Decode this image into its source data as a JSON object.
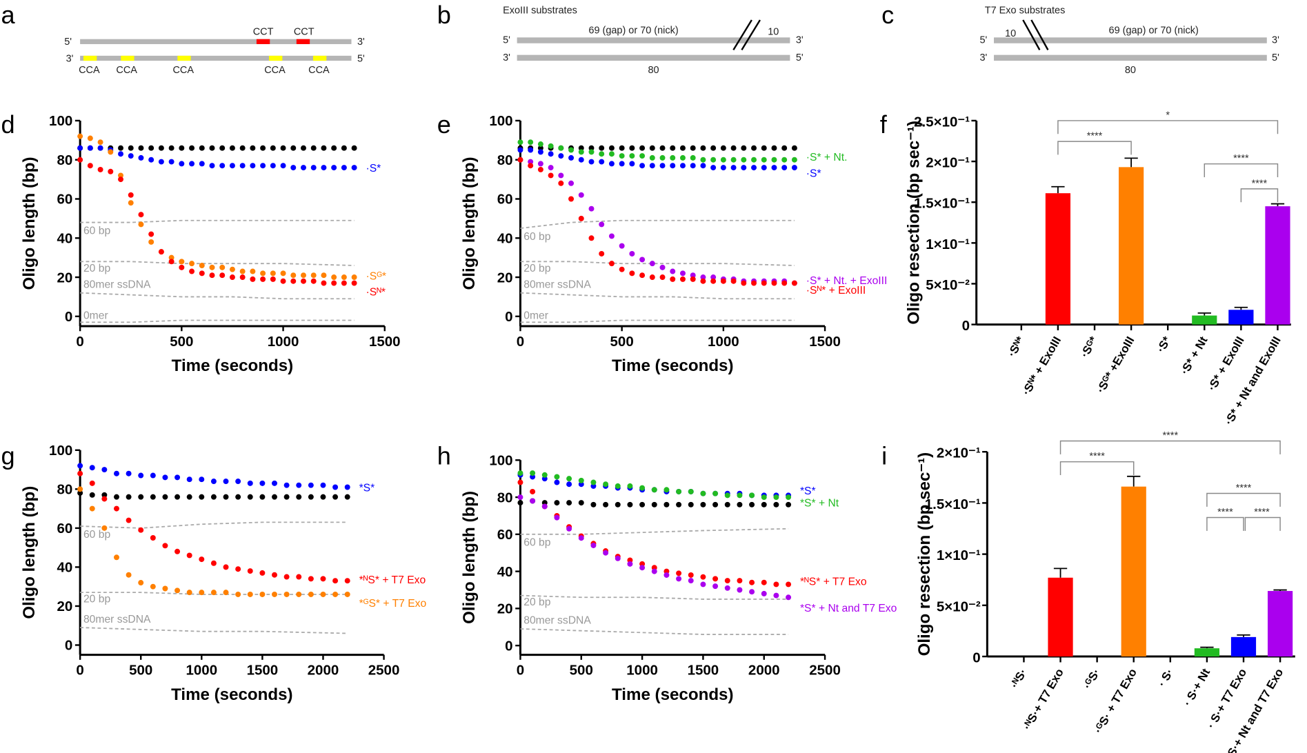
{
  "diagrams": {
    "a": {
      "panel": "a",
      "top_5": "5'",
      "top_3": "3'",
      "bot_3": "3'",
      "bot_5": "5'",
      "top_marks": [
        "CCT",
        "CCT"
      ],
      "bottom_marks": [
        "CCA",
        "CCA",
        "CCA",
        "CCA",
        "CCA"
      ],
      "colors": {
        "strand": "#b5b5b5",
        "cct": "#ff0000",
        "cca": "#ffff00"
      }
    },
    "b": {
      "panel": "b",
      "title": "ExoIII substrates",
      "top_label": "69 (gap) or 70 (nick)",
      "short_label": "10",
      "bottom_label": "80",
      "top_5": "5'",
      "top_3": "3'",
      "bot_3": "3'",
      "bot_5": "5'"
    },
    "c": {
      "panel": "c",
      "title": "T7 Exo substrates",
      "top_label": "69 (gap) or 70 (nick)",
      "short_label": "10",
      "bottom_label": "80",
      "top_5": "5'",
      "top_3": "3'",
      "bot_3": "3'",
      "bot_5": "5'"
    }
  },
  "chart_data": [
    {
      "panel": "d",
      "type": "scatter",
      "xlabel": "Time (seconds)",
      "ylabel": "Oligo length (bp)",
      "xlim": [
        0,
        1500
      ],
      "ylim": [
        -5,
        100
      ],
      "xticks": [
        0,
        500,
        1000,
        1500
      ],
      "yticks": [
        0,
        20,
        40,
        60,
        80,
        100
      ],
      "grid": false,
      "x": [
        0,
        50,
        100,
        150,
        200,
        250,
        300,
        350,
        400,
        450,
        500,
        550,
        600,
        650,
        700,
        750,
        800,
        850,
        900,
        950,
        1000,
        1050,
        1100,
        1150,
        1200,
        1250,
        1300,
        1350
      ],
      "series": [
        {
          "name": "",
          "color": "#000000",
          "values": [
            86,
            86,
            86,
            86,
            86,
            86,
            86,
            86,
            86,
            86,
            86,
            86,
            86,
            86,
            86,
            86,
            86,
            86,
            86,
            86,
            86,
            86,
            86,
            86,
            86,
            86,
            86,
            86
          ]
        },
        {
          "name": "·S*",
          "color": "#0000ff",
          "values": [
            86,
            86,
            86,
            85,
            83,
            82,
            81,
            80,
            79,
            79,
            78,
            78,
            78,
            77,
            77,
            77,
            77,
            77,
            77,
            77,
            77,
            76,
            76,
            76,
            76,
            76,
            76,
            76
          ]
        },
        {
          "name": "·Sᴳ*",
          "color": "#ff8000",
          "values": [
            92,
            91,
            89,
            84,
            72,
            58,
            47,
            38,
            33,
            30,
            28,
            27,
            26,
            25,
            25,
            24,
            23,
            23,
            22,
            22,
            22,
            21,
            21,
            21,
            21,
            20,
            20,
            20
          ]
        },
        {
          "name": "·Sᴺ*",
          "color": "#ff0000",
          "values": [
            80,
            77,
            75,
            74,
            70,
            62,
            52,
            42,
            33,
            28,
            25,
            23,
            22,
            21,
            21,
            20,
            20,
            19,
            19,
            19,
            18,
            18,
            18,
            18,
            17,
            17,
            17,
            17
          ]
        }
      ],
      "reference_lines": {
        "x": [
          0,
          250,
          500,
          750,
          1000,
          1350
        ],
        "lines": [
          {
            "name": "60 bp",
            "values": [
              48,
              48,
              49,
              49,
              49,
              49
            ]
          },
          {
            "name": "20 bp",
            "values": [
              28,
              28,
              27,
              27,
              27,
              26
            ]
          },
          {
            "name": "80mer ssDNA",
            "values": [
              12,
              11,
              10,
              10,
              9,
              9
            ]
          },
          {
            "name": "0mer",
            "values": [
              -3,
              -3,
              -2,
              -2,
              -2,
              -2
            ]
          }
        ]
      }
    },
    {
      "panel": "e",
      "type": "scatter",
      "xlabel": "Time (seconds)",
      "ylabel": "Oligo length (bp)",
      "xlim": [
        0,
        1500
      ],
      "ylim": [
        -5,
        100
      ],
      "xticks": [
        0,
        500,
        1000,
        1500
      ],
      "yticks": [
        0,
        20,
        40,
        60,
        80,
        100
      ],
      "grid": false,
      "x": [
        0,
        50,
        100,
        150,
        200,
        250,
        300,
        350,
        400,
        450,
        500,
        550,
        600,
        650,
        700,
        750,
        800,
        850,
        900,
        950,
        1000,
        1050,
        1100,
        1150,
        1200,
        1250,
        1300,
        1350
      ],
      "series": [
        {
          "name": "",
          "color": "#000000",
          "values": [
            86,
            86,
            86,
            86,
            86,
            86,
            86,
            86,
            86,
            86,
            86,
            86,
            86,
            86,
            86,
            86,
            86,
            86,
            86,
            86,
            86,
            86,
            86,
            86,
            86,
            86,
            86,
            86
          ]
        },
        {
          "name": "·S* + Nt.",
          "color": "#22bb22",
          "values": [
            89,
            89,
            88,
            87,
            86,
            85,
            84,
            84,
            83,
            83,
            82,
            82,
            82,
            81,
            81,
            81,
            81,
            81,
            80,
            80,
            80,
            80,
            80,
            80,
            80,
            80,
            80,
            80
          ]
        },
        {
          "name": "·S*",
          "color": "#0000ff",
          "values": [
            85,
            85,
            84,
            83,
            82,
            81,
            80,
            79,
            79,
            78,
            78,
            78,
            77,
            77,
            77,
            77,
            77,
            77,
            77,
            76,
            76,
            76,
            76,
            76,
            76,
            76,
            76,
            76
          ]
        },
        {
          "name": "·S* + Nt. + ExoIII",
          "color": "#aa00ee",
          "values": [
            80,
            79,
            78,
            76,
            72,
            68,
            62,
            55,
            47,
            41,
            36,
            32,
            29,
            27,
            25,
            23,
            22,
            21,
            20,
            20,
            19,
            19,
            18,
            18,
            18,
            18,
            18,
            17
          ]
        },
        {
          "name": "·Sᴺ* + ExoIII",
          "color": "#ff0000",
          "values": [
            80,
            77,
            75,
            72,
            68,
            60,
            50,
            40,
            32,
            27,
            24,
            22,
            21,
            20,
            20,
            19,
            19,
            19,
            18,
            18,
            18,
            18,
            17,
            17,
            17,
            17,
            17,
            17
          ]
        }
      ],
      "reference_lines": {
        "x": [
          0,
          250,
          500,
          750,
          1000,
          1350
        ],
        "lines": [
          {
            "name": "60 bp",
            "values": [
              45,
              48,
              49,
              49,
              49,
              49
            ]
          },
          {
            "name": "20 bp",
            "values": [
              28,
              28,
              27,
              27,
              27,
              26
            ]
          },
          {
            "name": "80mer ssDNA",
            "values": [
              12,
              11,
              10,
              10,
              9,
              9
            ]
          },
          {
            "name": "0mer",
            "values": [
              -3,
              -3,
              -2,
              -2,
              -2,
              -2
            ]
          }
        ]
      }
    },
    {
      "panel": "f",
      "type": "bar",
      "ylabel": "Oligo resection (bp sec⁻¹)",
      "ylim": [
        0,
        0.25
      ],
      "yticks": [
        0,
        0.05,
        0.1,
        0.15,
        0.2,
        0.25
      ],
      "ytick_labels": [
        "0",
        "5×10⁻²",
        "1×10⁻¹",
        "1.5×10⁻¹",
        "2×10⁻¹",
        "2.5×10⁻¹"
      ],
      "categories": [
        "·Sᴺ*",
        "·Sᴺ* + ExoIII",
        "·Sᴳ*",
        "·Sᴳ* +ExoIII",
        "·S*",
        "·S* + Nt",
        "·S* + ExoIII",
        "·S* + Nt and ExoIII"
      ],
      "values": [
        0,
        0.161,
        0,
        0.193,
        0,
        0.011,
        0.018,
        0.145
      ],
      "errors": [
        0,
        0.008,
        0,
        0.011,
        0,
        0.003,
        0.003,
        0.003
      ],
      "colors": [
        "#ff0000",
        "#ff0000",
        "#ff8000",
        "#ff8000",
        "#22bb22",
        "#22bb22",
        "#0000ff",
        "#aa00ee"
      ],
      "significance": [
        {
          "from": 1,
          "to": 7,
          "label": "*"
        },
        {
          "from": 1,
          "to": 3,
          "label": "****"
        },
        {
          "from": 5,
          "to": 7,
          "label": "****"
        },
        {
          "from": 6,
          "to": 7,
          "label": "****"
        }
      ]
    },
    {
      "panel": "g",
      "type": "scatter",
      "xlabel": "Time (seconds)",
      "ylabel": "Oligo length (bp)",
      "xlim": [
        0,
        2500
      ],
      "ylim": [
        -5,
        100
      ],
      "xticks": [
        0,
        500,
        1000,
        1500,
        2000,
        2500
      ],
      "yticks": [
        0,
        20,
        40,
        60,
        80,
        100
      ],
      "grid": false,
      "x": [
        0,
        100,
        200,
        300,
        400,
        500,
        600,
        700,
        800,
        900,
        1000,
        1100,
        1200,
        1300,
        1400,
        1500,
        1600,
        1700,
        1800,
        1900,
        2000,
        2100,
        2200
      ],
      "series": [
        {
          "name": "*S*",
          "color": "#0000ff",
          "values": [
            92,
            91,
            90,
            88,
            88,
            87,
            87,
            86,
            86,
            85,
            85,
            84,
            84,
            84,
            83,
            83,
            83,
            82,
            82,
            82,
            82,
            81,
            81
          ]
        },
        {
          "name": "",
          "color": "#000000",
          "values": [
            78,
            77,
            77,
            76,
            76,
            76,
            76,
            76,
            76,
            76,
            76,
            76,
            76,
            76,
            76,
            76,
            76,
            76,
            76,
            76,
            76,
            76,
            76
          ]
        },
        {
          "name": "*ᴺS* + T7 Exo",
          "color": "#ff0000",
          "values": [
            88,
            83,
            75,
            70,
            64,
            59,
            55,
            51,
            48,
            46,
            44,
            42,
            40,
            39,
            38,
            37,
            36,
            35,
            35,
            34,
            34,
            33,
            33
          ]
        },
        {
          "name": "*ᴳS* + T7 Exo",
          "color": "#ff8000",
          "values": [
            80,
            70,
            60,
            45,
            36,
            32,
            30,
            29,
            28,
            27,
            27,
            27,
            27,
            26,
            26,
            26,
            26,
            26,
            26,
            26,
            26,
            26,
            26
          ]
        }
      ],
      "reference_lines": {
        "x": [
          0,
          500,
          1000,
          1500,
          2200
        ],
        "lines": [
          {
            "name": "60 bp",
            "values": [
              61,
              60,
              62,
              63,
              63
            ]
          },
          {
            "name": "20 bp",
            "values": [
              27,
              27,
              26,
              26,
              26
            ]
          },
          {
            "name": "80mer ssDNA",
            "values": [
              9,
              8,
              7,
              7,
              6
            ]
          }
        ]
      }
    },
    {
      "panel": "h",
      "type": "scatter",
      "xlabel": "Time (seconds)",
      "ylabel": "Oligo length (bp)",
      "xlim": [
        0,
        2500
      ],
      "ylim": [
        -5,
        100
      ],
      "xticks": [
        0,
        500,
        1000,
        1500,
        2000,
        2500
      ],
      "yticks": [
        0,
        20,
        40,
        60,
        80,
        100
      ],
      "grid": false,
      "x": [
        0,
        100,
        200,
        300,
        400,
        500,
        600,
        700,
        800,
        900,
        1000,
        1100,
        1200,
        1300,
        1400,
        1500,
        1600,
        1700,
        1800,
        1900,
        2000,
        2100,
        2200
      ],
      "series": [
        {
          "name": "*S*",
          "color": "#0000ff",
          "values": [
            92,
            91,
            90,
            88,
            87,
            87,
            86,
            86,
            85,
            85,
            84,
            84,
            83,
            83,
            83,
            82,
            82,
            82,
            82,
            81,
            81,
            81,
            81
          ]
        },
        {
          "name": "*S* + Nt",
          "color": "#22bb22",
          "values": [
            93,
            93,
            92,
            91,
            90,
            89,
            88,
            87,
            86,
            86,
            85,
            84,
            84,
            83,
            83,
            82,
            82,
            81,
            81,
            81,
            80,
            80,
            80
          ]
        },
        {
          "name": "",
          "color": "#000000",
          "values": [
            77,
            78,
            77,
            77,
            77,
            77,
            76,
            76,
            76,
            76,
            76,
            76,
            76,
            76,
            76,
            76,
            76,
            76,
            76,
            76,
            76,
            76,
            76
          ]
        },
        {
          "name": "*ᴺS* + T7 Exo",
          "color": "#ff0000",
          "values": [
            88,
            83,
            75,
            70,
            64,
            59,
            55,
            51,
            48,
            46,
            44,
            42,
            40,
            39,
            38,
            37,
            36,
            35,
            35,
            34,
            34,
            33,
            33
          ]
        },
        {
          "name": "*S* + Nt and T7 Exo",
          "color": "#aa00ee",
          "values": [
            80,
            78,
            75,
            69,
            63,
            58,
            54,
            50,
            47,
            44,
            42,
            40,
            38,
            36,
            35,
            33,
            32,
            31,
            30,
            29,
            28,
            27,
            26
          ]
        }
      ],
      "reference_lines": {
        "x": [
          0,
          500,
          1000,
          1500,
          2200
        ],
        "lines": [
          {
            "name": "60 bp",
            "values": [
              60,
              60,
              61,
              62,
              63
            ]
          },
          {
            "name": "20 bp",
            "values": [
              27,
              26,
              26,
              25,
              25
            ]
          },
          {
            "name": "80mer ssDNA",
            "values": [
              9,
              8,
              7,
              6,
              6
            ]
          }
        ]
      }
    },
    {
      "panel": "i",
      "type": "bar",
      "ylabel": "Oligo resection (bp sec⁻¹)",
      "ylim": [
        0,
        0.2
      ],
      "yticks": [
        0,
        0.05,
        0.1,
        0.15,
        0.2
      ],
      "ytick_labels": [
        "0",
        "5×10⁻²",
        "1×10⁻¹",
        "1.5×10⁻¹",
        "2×10⁻¹"
      ],
      "categories": [
        "·ᴺS·",
        "·ᴺS·+ T7 Exo",
        "·ᴳS·",
        "·ᴳS· + T7 Exo",
        "· S·",
        "· S·+ Nt",
        "· S·+ T7 Exo",
        "· S·+ Nt and T7 Exo"
      ],
      "values": [
        0,
        0.077,
        0,
        0.166,
        0,
        0.008,
        0.019,
        0.064
      ],
      "errors": [
        0,
        0.009,
        0,
        0.01,
        0,
        0.001,
        0.002,
        0.001
      ],
      "colors": [
        "#ff0000",
        "#ff0000",
        "#ff8000",
        "#ff8000",
        "#22bb22",
        "#22bb22",
        "#0000ff",
        "#aa00ee"
      ],
      "significance": [
        {
          "from": 1,
          "to": 7,
          "label": "****"
        },
        {
          "from": 1,
          "to": 3,
          "label": "****"
        },
        {
          "from": 5,
          "to": 7,
          "label": "****"
        },
        {
          "from": 5,
          "to": 6,
          "label": "****"
        },
        {
          "from": 6,
          "to": 7,
          "label": "****"
        }
      ]
    }
  ]
}
